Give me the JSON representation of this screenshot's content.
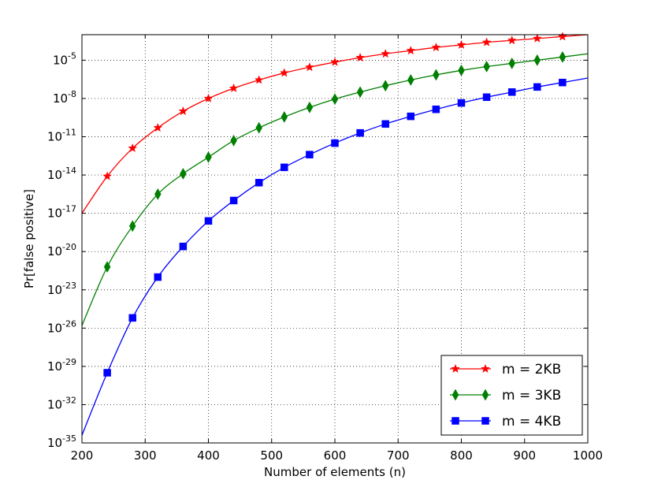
{
  "chart_data": {
    "type": "line",
    "title": "",
    "xlabel": "Number of elements (n)",
    "ylabel": "Pr[false positive]",
    "xlim": [
      200,
      1000
    ],
    "ylim_exponent": [
      -35,
      -3
    ],
    "yscale": "log",
    "grid": true,
    "legend_position": "bottom-right",
    "x_ticks": [
      "200",
      "300",
      "400",
      "500",
      "600",
      "700",
      "800",
      "900",
      "1000"
    ],
    "y_tick_exponents": [
      "-35",
      "-32",
      "-29",
      "-26",
      "-23",
      "-20",
      "-17",
      "-14",
      "-11",
      "-8",
      "-5"
    ],
    "y_tick_base": "10",
    "series": [
      {
        "name": "m = 2KB",
        "color": "#ff0000",
        "marker": "star",
        "x": [
          200,
          240,
          280,
          320,
          360,
          400,
          440,
          480,
          520,
          560,
          600,
          640,
          680,
          720,
          760,
          800,
          840,
          880,
          920,
          960,
          1000
        ],
        "log10_y": [
          -17.0,
          -14.1,
          -11.9,
          -10.3,
          -9.0,
          -8.0,
          -7.2,
          -6.55,
          -6.0,
          -5.55,
          -5.15,
          -4.8,
          -4.5,
          -4.25,
          -4.0,
          -3.8,
          -3.6,
          -3.45,
          -3.3,
          -3.15,
          -3.0
        ]
      },
      {
        "name": "m = 3KB",
        "color": "#008000",
        "marker": "diamond",
        "x": [
          200,
          240,
          280,
          320,
          360,
          400,
          440,
          480,
          520,
          560,
          600,
          640,
          680,
          720,
          760,
          800,
          840,
          880,
          920,
          960,
          1000
        ],
        "log10_y": [
          -25.8,
          -21.2,
          -18.0,
          -15.5,
          -13.9,
          -12.6,
          -11.3,
          -10.3,
          -9.45,
          -8.7,
          -8.05,
          -7.5,
          -7.0,
          -6.55,
          -6.15,
          -5.8,
          -5.5,
          -5.25,
          -5.0,
          -4.75,
          -4.5
        ]
      },
      {
        "name": "m = 4KB",
        "color": "#0000ff",
        "marker": "square",
        "x": [
          200,
          240,
          280,
          320,
          360,
          400,
          440,
          480,
          520,
          560,
          600,
          640,
          680,
          720,
          760,
          800,
          840,
          880,
          920,
          960,
          1000
        ],
        "log10_y": [
          -34.4,
          -29.5,
          -25.2,
          -22.0,
          -19.6,
          -17.6,
          -16.0,
          -14.6,
          -13.4,
          -12.4,
          -11.5,
          -10.7,
          -10.0,
          -9.4,
          -8.85,
          -8.35,
          -7.9,
          -7.5,
          -7.1,
          -6.75,
          -6.4
        ]
      }
    ]
  }
}
